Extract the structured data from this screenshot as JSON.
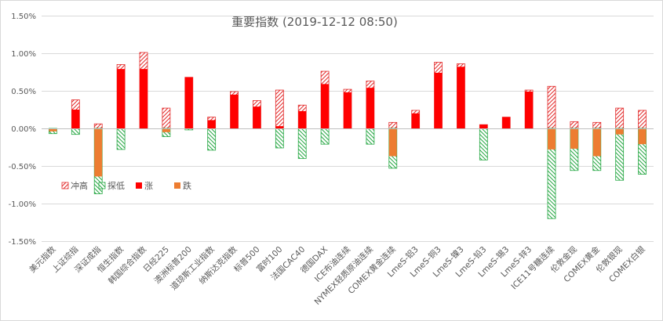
{
  "chart_data": {
    "type": "bar",
    "title": "重要指数 (2019-12-12 08:50)",
    "yticks": [
      "1.50%",
      "1.00%",
      "0.50%",
      "0.00%",
      "-0.50%",
      "-1.00%",
      "-1.50%"
    ],
    "ylim": [
      -1.5,
      1.5
    ],
    "unit": "%",
    "grid": true,
    "legend_position": "left-middle",
    "categories": [
      "美元指数",
      "上证综指",
      "深证成指",
      "恒生指数",
      "韩国综合指数",
      "日经225",
      "澳洲标普200",
      "道琼斯工业指数",
      "纳斯达克指数",
      "标普500",
      "富时100",
      "法国CAC40",
      "德国DAX",
      "ICE布油连续",
      "NYMEX轻质原油连续",
      "COMEX黄金连续",
      "LmeS-铝3",
      "LmeS-铜3",
      "LmeS-镍3",
      "LmeS-铅3",
      "LmeS-锡3",
      "LmeS-锌3",
      "ICE11号糖连续",
      "伦敦金现",
      "COMEX黄金",
      "伦敦银现",
      "COMEX白银"
    ],
    "series": [
      {
        "name": "冲高",
        "key": "high",
        "color": "#e32b2b",
        "pattern": "hatch-red",
        "values": [
          0.0,
          0.38,
          0.06,
          0.85,
          1.01,
          0.27,
          0.68,
          0.15,
          0.49,
          0.37,
          0.51,
          0.31,
          0.76,
          0.52,
          0.63,
          0.08,
          0.24,
          0.88,
          0.86,
          0.05,
          0.15,
          0.51,
          0.56,
          0.09,
          0.08,
          0.27,
          0.24
        ]
      },
      {
        "name": "探低",
        "key": "low",
        "color": "#27a844",
        "pattern": "hatch-green",
        "values": [
          -0.07,
          -0.08,
          -0.87,
          -0.28,
          0.0,
          -0.11,
          -0.02,
          -0.29,
          0.0,
          0.0,
          -0.26,
          -0.4,
          -0.21,
          0.0,
          -0.21,
          -0.53,
          0.0,
          0.0,
          0.0,
          -0.42,
          0.0,
          0.0,
          -1.2,
          -0.56,
          -0.56,
          -0.69,
          -0.61
        ]
      },
      {
        "name": "涨",
        "key": "up",
        "color": "#ff0000",
        "pattern": "solid",
        "values": [
          0.0,
          0.25,
          0.0,
          0.79,
          0.79,
          0.0,
          0.68,
          0.11,
          0.45,
          0.29,
          0.03,
          0.23,
          0.59,
          0.48,
          0.54,
          0.0,
          0.2,
          0.74,
          0.82,
          0.05,
          0.15,
          0.49,
          0.0,
          0.0,
          0.0,
          0.0,
          0.0
        ]
      },
      {
        "name": "跌",
        "key": "down",
        "color": "#ed7d31",
        "pattern": "solid",
        "values": [
          -0.04,
          0.0,
          -0.64,
          0.0,
          0.0,
          -0.05,
          0.0,
          0.0,
          0.0,
          0.0,
          0.0,
          0.0,
          0.0,
          0.0,
          0.0,
          -0.37,
          0.0,
          0.0,
          0.0,
          0.0,
          0.0,
          0.0,
          -0.28,
          -0.27,
          -0.37,
          -0.08,
          -0.21
        ]
      }
    ]
  }
}
